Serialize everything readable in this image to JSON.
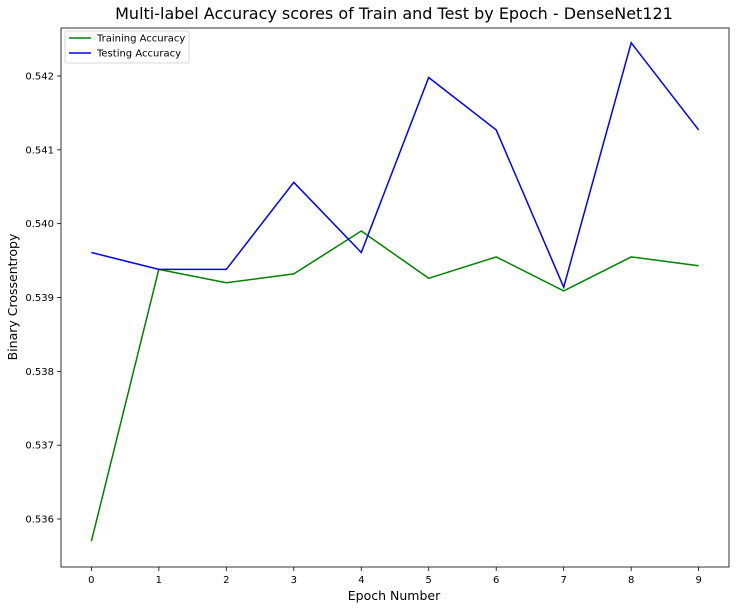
{
  "chart_data": {
    "type": "line",
    "title": "Multi-label Accuracy scores of Train and Test by Epoch - DenseNet121",
    "xlabel": "Epoch Number",
    "ylabel": "Binary Crossentropy",
    "x": [
      0,
      1,
      2,
      3,
      4,
      5,
      6,
      7,
      8,
      9
    ],
    "xticks": [
      "0",
      "1",
      "2",
      "3",
      "4",
      "5",
      "6",
      "7",
      "8",
      "9"
    ],
    "yticks": [
      "0.536",
      "0.537",
      "0.538",
      "0.539",
      "0.540",
      "0.541",
      "0.542"
    ],
    "ytick_values": [
      0.536,
      0.537,
      0.538,
      0.539,
      0.54,
      0.541,
      0.542
    ],
    "xlim": [
      -0.45,
      9.45
    ],
    "ylim": [
      0.53535,
      0.54265
    ],
    "grid": false,
    "legend_position": "top-left",
    "series": [
      {
        "name": "Training Accuracy",
        "color": "#008000",
        "values": [
          0.5357,
          0.53938,
          0.5392,
          0.53932,
          0.5399,
          0.53926,
          0.53955,
          0.53909,
          0.53955,
          0.53943
        ]
      },
      {
        "name": "Testing Accuracy",
        "color": "#0000ff",
        "values": [
          0.53961,
          0.53938,
          0.53938,
          0.54056,
          0.53961,
          0.54198,
          0.54127,
          0.53914,
          0.54245,
          0.54127
        ]
      }
    ]
  }
}
